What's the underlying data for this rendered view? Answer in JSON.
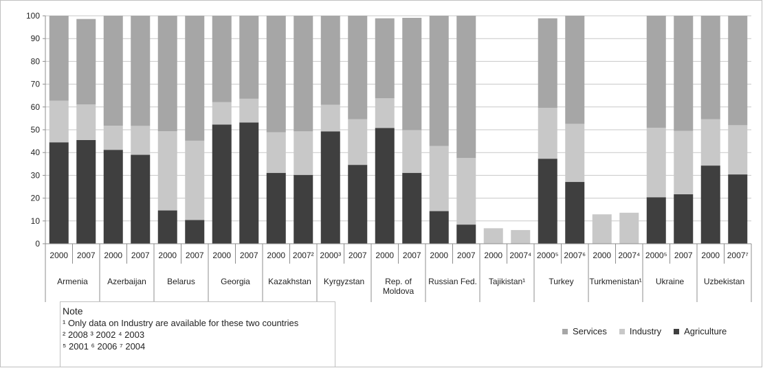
{
  "colors": {
    "services": "#a6a6a6",
    "industry": "#c8c8c8",
    "agriculture": "#3f3f3f",
    "grid": "#c7c7c7",
    "axis": "#8c8c8c"
  },
  "chart_data": {
    "type": "bar",
    "stacked": true,
    "ylim": [
      0,
      100
    ],
    "yticks": [
      0,
      10,
      20,
      30,
      40,
      50,
      60,
      70,
      80,
      90,
      100
    ],
    "grid": true,
    "legend_position": "bottom-right",
    "categories": [
      {
        "country": "Armenia",
        "year": "2000",
        "sup": ""
      },
      {
        "country": "Armenia",
        "year": "2007",
        "sup": ""
      },
      {
        "country": "Azerbaijan",
        "year": "2000",
        "sup": ""
      },
      {
        "country": "Azerbaijan",
        "year": "2007",
        "sup": ""
      },
      {
        "country": "Belarus",
        "year": "2000",
        "sup": ""
      },
      {
        "country": "Belarus",
        "year": "2007",
        "sup": ""
      },
      {
        "country": "Georgia",
        "year": "2000",
        "sup": ""
      },
      {
        "country": "Georgia",
        "year": "2007",
        "sup": ""
      },
      {
        "country": "Kazakhstan",
        "year": "2000",
        "sup": ""
      },
      {
        "country": "Kazakhstan",
        "year": "2007",
        "sup": "²"
      },
      {
        "country": "Kyrgyzstan",
        "year": "2000",
        "sup": "³"
      },
      {
        "country": "Kyrgyzstan",
        "year": "2007",
        "sup": ""
      },
      {
        "country": "Rep. of Moldova",
        "year": "2000",
        "sup": ""
      },
      {
        "country": "Rep. of Moldova",
        "year": "2007",
        "sup": ""
      },
      {
        "country": "Russian Fed.",
        "year": "2000",
        "sup": ""
      },
      {
        "country": "Russian Fed.",
        "year": "2007",
        "sup": ""
      },
      {
        "country": "Tajikistan¹",
        "year": "2000",
        "sup": ""
      },
      {
        "country": "Tajikistan¹",
        "year": "2007",
        "sup": "⁴"
      },
      {
        "country": "Turkey",
        "year": "2000",
        "sup": "⁵"
      },
      {
        "country": "Turkey",
        "year": "2007",
        "sup": "⁶"
      },
      {
        "country": "Turkmenistan¹",
        "year": "2000",
        "sup": ""
      },
      {
        "country": "Turkmenistan¹",
        "year": "2007",
        "sup": "⁴"
      },
      {
        "country": "Ukraine",
        "year": "2000",
        "sup": "⁵"
      },
      {
        "country": "Ukraine",
        "year": "2007",
        "sup": ""
      },
      {
        "country": "Uzbekistan",
        "year": "2000",
        "sup": ""
      },
      {
        "country": "Uzbekistan",
        "year": "2007",
        "sup": "⁷"
      }
    ],
    "countries": [
      {
        "label": "Armenia",
        "lines": [
          "Armenia"
        ]
      },
      {
        "label": "Azerbaijan",
        "lines": [
          "Azerbaijan"
        ]
      },
      {
        "label": "Belarus",
        "lines": [
          "Belarus"
        ]
      },
      {
        "label": "Georgia",
        "lines": [
          "Georgia"
        ]
      },
      {
        "label": "Kazakhstan",
        "lines": [
          "Kazakhstan"
        ]
      },
      {
        "label": "Kyrgyzstan",
        "lines": [
          "Kyrgyzstan"
        ]
      },
      {
        "label": "Rep. of Moldova",
        "lines": [
          "Rep. of",
          "Moldova"
        ]
      },
      {
        "label": "Russian Fed.",
        "lines": [
          "Russian Fed."
        ]
      },
      {
        "label": "Tajikistan¹",
        "lines": [
          "Tajikistan¹"
        ]
      },
      {
        "label": "Turkey",
        "lines": [
          "Turkey"
        ]
      },
      {
        "label": "Turkmenistan¹",
        "lines": [
          "Turkmenistan¹"
        ]
      },
      {
        "label": "Ukraine",
        "lines": [
          "Ukraine"
        ]
      },
      {
        "label": "Uzbekistan",
        "lines": [
          "Uzbekistan"
        ]
      }
    ],
    "series": [
      {
        "name": "Agriculture",
        "color_key": "agriculture",
        "values": [
          44.5,
          45.5,
          41.2,
          39,
          14.6,
          10.4,
          52.3,
          53.2,
          31.1,
          30.2,
          49.3,
          34.6,
          50.8,
          31.1,
          14.3,
          8.4,
          0,
          0,
          37.3,
          27.1,
          0,
          0,
          20.4,
          21.7,
          34.3,
          30.4
        ]
      },
      {
        "name": "Industry",
        "color_key": "industry",
        "values": [
          18.3,
          15.6,
          10.6,
          12.7,
          34.8,
          34.8,
          9.8,
          10.4,
          17.8,
          19.1,
          11.7,
          20.0,
          13.0,
          18.7,
          28.6,
          29.2,
          6.8,
          6.0,
          22.3,
          25.5,
          12.9,
          13.6,
          30.5,
          27.8,
          20.3,
          21.6
        ]
      },
      {
        "name": "Services",
        "color_key": "services",
        "values": [
          37.2,
          37.5,
          48.2,
          48.3,
          50.6,
          54.8,
          37.9,
          36.4,
          51.1,
          50.7,
          39.0,
          45.4,
          35.1,
          49.3,
          57.1,
          62.4,
          0,
          0,
          39.3,
          47.4,
          0,
          0,
          49.1,
          50.5,
          45.4,
          48.0
        ]
      }
    ]
  },
  "legend": {
    "services": "Services",
    "industry": "Industry",
    "agriculture": "Agriculture"
  },
  "note": {
    "title": "Note",
    "line1": "¹ Only data on Industry are available for these two countries",
    "line2": "² 2008 ³ 2002 ⁴ 2003",
    "line3": "⁵ 2001 ⁶ 2006 ⁷ 2004"
  }
}
